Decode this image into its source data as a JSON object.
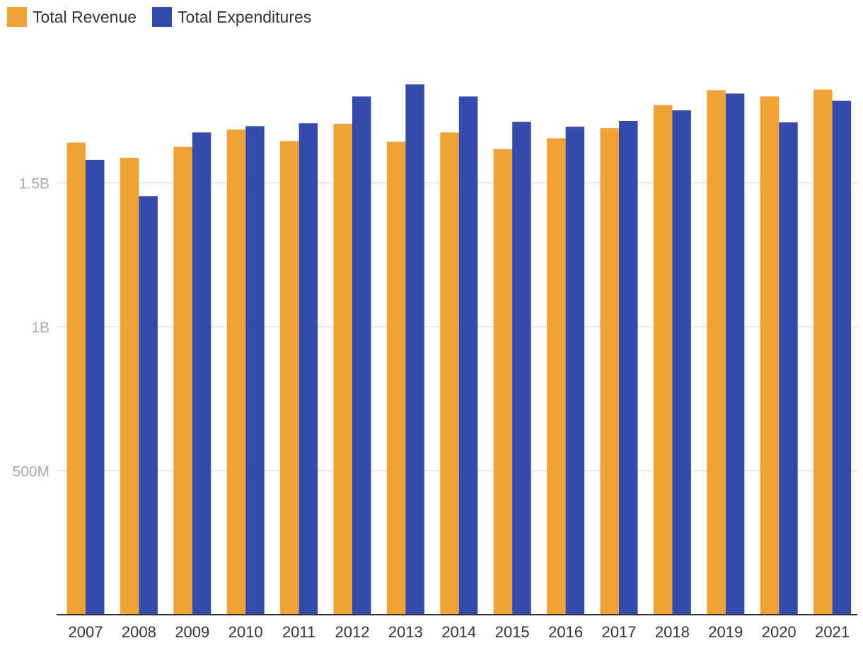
{
  "chart_data": {
    "type": "bar",
    "title": "",
    "xlabel": "",
    "ylabel": "",
    "ylim": [
      0,
      2000000000
    ],
    "grid": true,
    "legend_position": "top-left",
    "categories": [
      "2007",
      "2008",
      "2009",
      "2010",
      "2011",
      "2012",
      "2013",
      "2014",
      "2015",
      "2016",
      "2017",
      "2018",
      "2019",
      "2020",
      "2021"
    ],
    "series": [
      {
        "name": "Total Revenue",
        "color": "#F0A236",
        "values": [
          1640000000,
          1587000000,
          1625000000,
          1685000000,
          1645000000,
          1705000000,
          1643000000,
          1675000000,
          1617000000,
          1655000000,
          1690000000,
          1770000000,
          1822000000,
          1800000000,
          1824000000
        ]
      },
      {
        "name": "Total Expenditures",
        "color": "#344BAB",
        "values": [
          1580000000,
          1454000000,
          1675000000,
          1697000000,
          1707000000,
          1800000000,
          1842000000,
          1800000000,
          1712000000,
          1695000000,
          1715000000,
          1752000000,
          1810000000,
          1710000000,
          1785000000
        ]
      }
    ],
    "yticks": [
      {
        "value": 500000000,
        "label": "500M"
      },
      {
        "value": 1000000000,
        "label": "1B"
      },
      {
        "value": 1500000000,
        "label": "1.5B"
      }
    ]
  }
}
